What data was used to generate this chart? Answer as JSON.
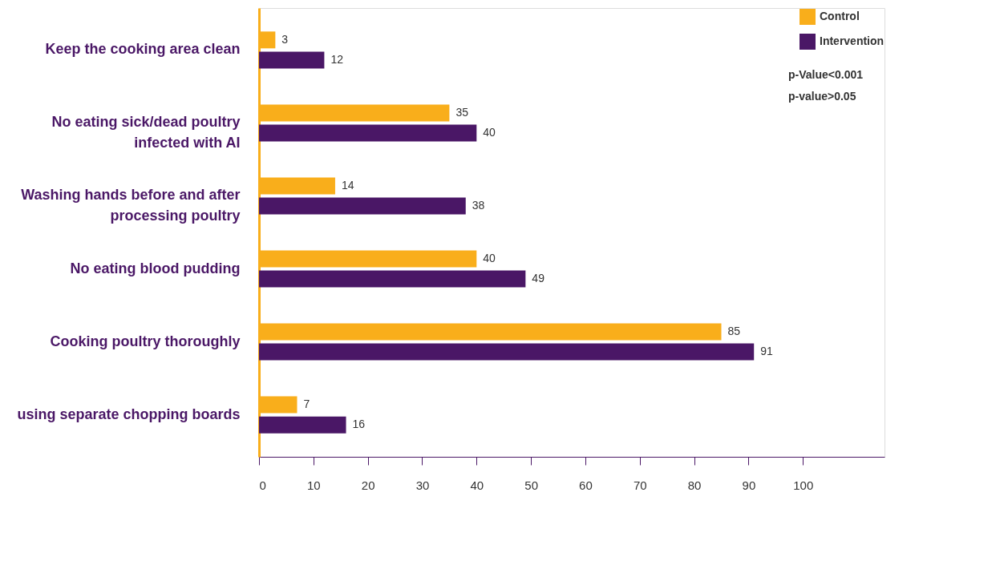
{
  "chart_data": {
    "type": "bar",
    "orientation": "horizontal",
    "categories": [
      "Keep the cooking area clean",
      "No eating sick/dead poultry infected with AI",
      "Washing hands before and after processing poultry",
      "No eating blood pudding",
      "Cooking poultry thoroughly",
      "using separate chopping boards"
    ],
    "series": [
      {
        "name": "Control",
        "color": "#f9ae1b",
        "values": [
          3,
          35,
          14,
          40,
          85,
          7
        ]
      },
      {
        "name": "Intervention",
        "color": "#4a1766",
        "values": [
          12,
          40,
          38,
          49,
          91,
          16
        ]
      }
    ],
    "xlim": [
      0,
      115
    ],
    "xticks": [
      0,
      10,
      20,
      30,
      40,
      50,
      60,
      70,
      80,
      90,
      100
    ],
    "data_labels": true,
    "grid": false,
    "legend": "top right",
    "annotations": [
      "p-Value<0.001",
      "p-value>0.05"
    ]
  }
}
